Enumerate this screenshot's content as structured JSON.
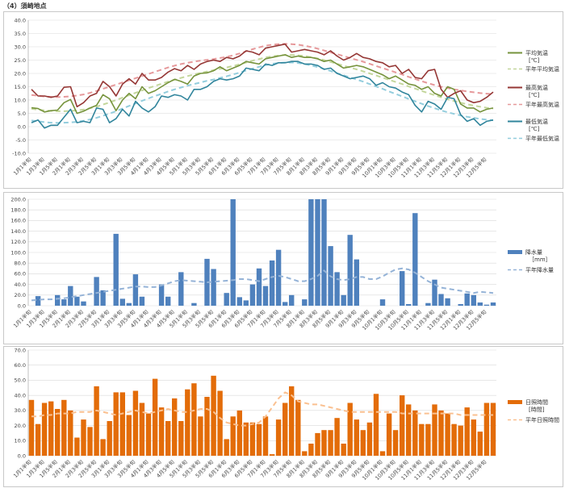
{
  "page_title": "（4）須崎地点",
  "x_labels": [
    "1月1半旬",
    "1月3半旬",
    "1月5半旬",
    "2月1半旬",
    "2月3半旬",
    "2月5半旬",
    "3月1半旬",
    "3月3半旬",
    "3月5半旬",
    "4月1半旬",
    "4月3半旬",
    "4月5半旬",
    "5月1半旬",
    "5月3半旬",
    "5月5半旬",
    "6月1半旬",
    "6月3半旬",
    "6月5半旬",
    "7月1半旬",
    "7月3半旬",
    "7月5半旬",
    "8月1半旬",
    "8月3半旬",
    "8月5半旬",
    "9月1半旬",
    "9月3半旬",
    "9月5半旬",
    "10月1半旬",
    "10月3半旬",
    "10月5半旬",
    "11月1半旬",
    "11月3半旬",
    "11月5半旬",
    "12月1半旬",
    "12月3半旬",
    "12月5半旬"
  ],
  "chart_data": [
    {
      "type": "line",
      "ylim": [
        -10,
        40
      ],
      "yticks": [
        "-10.0",
        "-5.0",
        "0.0",
        "5.0",
        "10.0",
        "15.0",
        "20.0",
        "25.0",
        "30.0",
        "35.0",
        "40.0"
      ],
      "series": [
        {
          "name": "平均気温",
          "unit": "[℃]",
          "color": "#76933c",
          "dashed": false,
          "values": [
            7.1,
            6.8,
            5.5,
            6.0,
            6.2,
            9.0,
            10.2,
            5.0,
            5.8,
            7.0,
            8.0,
            12.0,
            10.5,
            6.0,
            10.0,
            12.5,
            10.5,
            15.0,
            12.5,
            13.5,
            15.0,
            16.5,
            17.8,
            17.0,
            16.0,
            19.0,
            20.0,
            20.2,
            21.0,
            22.5,
            21.0,
            22.0,
            23.0,
            24.5,
            24.0,
            23.5,
            25.5,
            26.0,
            26.5,
            27.0,
            26.0,
            26.5,
            26.0,
            26.0,
            25.5,
            24.5,
            25.0,
            23.5,
            22.0,
            22.5,
            23.0,
            22.5,
            21.5,
            20.5,
            19.5,
            18.0,
            19.0,
            17.5,
            16.0,
            15.5,
            14.0,
            15.0,
            12.5,
            11.5,
            15.0,
            14.0,
            8.5,
            7.0,
            7.0,
            5.5,
            6.5,
            7.0
          ]
        },
        {
          "name": "平年平均気温",
          "unit": "",
          "color": "#c3d69b",
          "dashed": true,
          "values": [
            6.7,
            6.4,
            6.1,
            5.9,
            5.8,
            5.8,
            5.9,
            6.1,
            6.4,
            6.9,
            7.5,
            8.3,
            9.1,
            10.0,
            10.9,
            11.8,
            12.7,
            13.6,
            14.5,
            15.3,
            16.1,
            16.9,
            17.6,
            18.3,
            19.0,
            19.6,
            20.2,
            20.7,
            21.2,
            21.7,
            22.2,
            22.8,
            23.4,
            24.1,
            24.8,
            25.4,
            26.0,
            26.4,
            26.7,
            26.9,
            26.9,
            26.8,
            26.5,
            26.1,
            25.6,
            25.0,
            24.3,
            23.6,
            22.9,
            22.2,
            21.5,
            20.8,
            20.0,
            19.2,
            18.4,
            17.6,
            16.8,
            16.0,
            15.1,
            14.3,
            13.4,
            12.6,
            11.8,
            11.0,
            10.3,
            9.6,
            9.0,
            8.4,
            7.9,
            7.5,
            7.1,
            6.8
          ]
        },
        {
          "name": "最高気温",
          "unit": "[℃]",
          "color": "#953735",
          "dashed": false,
          "values": [
            14.0,
            11.5,
            11.5,
            11.0,
            11.5,
            14.8,
            15.0,
            7.5,
            9.0,
            11.5,
            12.5,
            17.0,
            15.0,
            11.5,
            16.0,
            18.0,
            16.0,
            20.0,
            17.5,
            17.5,
            18.5,
            20.5,
            21.8,
            21.0,
            23.0,
            21.5,
            23.5,
            24.5,
            25.0,
            24.5,
            26.0,
            25.5,
            26.5,
            28.5,
            28.0,
            27.0,
            29.5,
            30.0,
            30.5,
            31.0,
            28.0,
            28.5,
            29.0,
            28.5,
            28.0,
            27.0,
            28.5,
            26.5,
            25.0,
            26.0,
            27.5,
            26.0,
            25.5,
            24.5,
            24.0,
            22.5,
            23.0,
            20.0,
            21.5,
            18.5,
            18.0,
            21.0,
            21.5,
            14.0,
            11.0,
            12.5,
            13.5,
            10.0,
            9.0,
            9.5,
            11.0,
            13.0
          ]
        },
        {
          "name": "平年最高気温",
          "unit": "",
          "color": "#e6999b",
          "dashed": true,
          "values": [
            11.9,
            11.6,
            11.3,
            11.2,
            11.1,
            11.2,
            11.4,
            11.7,
            12.1,
            12.7,
            13.4,
            14.2,
            15.0,
            15.8,
            16.6,
            17.4,
            18.2,
            19.0,
            19.8,
            20.6,
            21.4,
            22.2,
            22.9,
            23.5,
            24.0,
            24.4,
            24.8,
            25.1,
            25.4,
            25.8,
            26.2,
            26.8,
            27.5,
            28.3,
            29.1,
            29.8,
            30.4,
            30.8,
            31.0,
            31.1,
            31.0,
            30.8,
            30.4,
            29.9,
            29.3,
            28.6,
            27.9,
            27.2,
            26.5,
            25.8,
            25.1,
            24.4,
            23.6,
            22.8,
            22.0,
            21.2,
            20.4,
            19.6,
            18.7,
            17.9,
            17.1,
            16.3,
            15.6,
            15.0,
            14.5,
            14.0,
            13.6,
            13.2,
            12.9,
            12.6,
            12.4,
            12.2
          ]
        },
        {
          "name": "最低気温",
          "unit": "[℃]",
          "color": "#31859c",
          "dashed": false,
          "values": [
            1.5,
            2.5,
            -0.5,
            0.5,
            0.5,
            3.5,
            6.5,
            1.5,
            2.0,
            1.5,
            7.0,
            6.5,
            1.5,
            3.0,
            6.5,
            4.0,
            9.5,
            7.0,
            5.5,
            7.5,
            11.5,
            11.0,
            12.0,
            11.5,
            10.0,
            14.0,
            14.0,
            15.0,
            17.0,
            18.0,
            17.5,
            18.0,
            19.0,
            22.0,
            21.5,
            21.0,
            23.5,
            23.0,
            24.0,
            24.0,
            24.5,
            24.5,
            23.5,
            23.5,
            23.0,
            21.5,
            22.0,
            20.0,
            19.0,
            18.0,
            18.5,
            19.0,
            18.0,
            15.5,
            16.5,
            15.0,
            14.5,
            13.0,
            12.0,
            8.0,
            5.5,
            9.5,
            8.5,
            6.5,
            11.0,
            10.5,
            4.5,
            2.0,
            3.0,
            0.5,
            2.0,
            2.5
          ]
        },
        {
          "name": "平年最低気温",
          "unit": "",
          "color": "#93cddd",
          "dashed": true,
          "values": [
            2.3,
            2.0,
            1.7,
            1.5,
            1.4,
            1.5,
            1.6,
            1.8,
            2.2,
            2.7,
            3.3,
            4.1,
            4.9,
            5.8,
            6.8,
            7.8,
            8.7,
            9.7,
            10.6,
            11.5,
            12.3,
            13.2,
            14.0,
            14.7,
            15.4,
            16.0,
            16.6,
            17.2,
            17.7,
            18.3,
            18.9,
            19.6,
            20.3,
            21.1,
            21.8,
            22.5,
            23.1,
            23.6,
            23.9,
            24.1,
            24.1,
            23.9,
            23.5,
            23.0,
            22.4,
            21.7,
            20.9,
            20.1,
            19.3,
            18.5,
            17.7,
            16.9,
            16.0,
            15.1,
            14.2,
            13.2,
            12.3,
            11.4,
            10.4,
            9.5,
            8.6,
            7.7,
            6.9,
            6.1,
            5.4,
            4.8,
            4.2,
            3.7,
            3.3,
            2.9,
            2.6,
            2.4
          ]
        }
      ]
    },
    {
      "type": "bar",
      "ylim": [
        0,
        200
      ],
      "yticks": [
        "0.0",
        "20.0",
        "40.0",
        "60.0",
        "80.0",
        "100.0",
        "120.0",
        "140.0",
        "160.0",
        "180.0",
        "200.0"
      ],
      "bar_series": {
        "name": "降水量",
        "unit": "［mm］",
        "color": "#4f81bd",
        "values": [
          0,
          18,
          0,
          0,
          20,
          12,
          37,
          17,
          8,
          0,
          54,
          29,
          0,
          135,
          13,
          5,
          59,
          17,
          0,
          0,
          40,
          17,
          0,
          63,
          0,
          5,
          0,
          88,
          69,
          0,
          24,
          200,
          16,
          10,
          40,
          70,
          37,
          85,
          105,
          7,
          20,
          0,
          12,
          200,
          200,
          200,
          112,
          63,
          20,
          133,
          87,
          0,
          0,
          0,
          12,
          0,
          0,
          65,
          3,
          174,
          0,
          5,
          49,
          22,
          14,
          0,
          3,
          23,
          20,
          6,
          2,
          6
        ]
      },
      "line_series": {
        "name": "平年降水量",
        "unit": "",
        "color": "#95b3d7",
        "dashed": true,
        "values": [
          10,
          11,
          12,
          12,
          13,
          14,
          16,
          18,
          20,
          22,
          24,
          26,
          28,
          30,
          32,
          34,
          36,
          36,
          35,
          35,
          38,
          42,
          46,
          48,
          47,
          46,
          45,
          44,
          45,
          46,
          47,
          48,
          50,
          50,
          48,
          46,
          50,
          54,
          56,
          54,
          50,
          46,
          46,
          50,
          56,
          66,
          55,
          50,
          48,
          50,
          54,
          54,
          50,
          50,
          55,
          62,
          68,
          70,
          68,
          62,
          54,
          46,
          40,
          34,
          32,
          30,
          28,
          26,
          24,
          26,
          25,
          24
        ]
      }
    },
    {
      "type": "bar",
      "ylim": [
        0,
        70
      ],
      "yticks": [
        "0.0",
        "10.0",
        "20.0",
        "30.0",
        "40.0",
        "50.0",
        "60.0",
        "70.0"
      ],
      "bar_series": {
        "name": "日照時間",
        "unit": "[時間]",
        "color": "#e36c09",
        "values": [
          37,
          21,
          35,
          36,
          31,
          37,
          30,
          12,
          24,
          19,
          46,
          11,
          23,
          42,
          42,
          27,
          43,
          35,
          28,
          51,
          32,
          23,
          38,
          23,
          44,
          48,
          26,
          39,
          53,
          43,
          11,
          26,
          30,
          22,
          22,
          21,
          26,
          1,
          24,
          35,
          46,
          37,
          3,
          8,
          15,
          17,
          17,
          25,
          8,
          35,
          24,
          17,
          22,
          41,
          3,
          28,
          17,
          40,
          34,
          30,
          21,
          21,
          34,
          30,
          28,
          21,
          20,
          32,
          24,
          16,
          35,
          35
        ]
      },
      "line_series": {
        "name": "平年日照時間",
        "unit": "",
        "color": "#fac090",
        "dashed": true,
        "values": [
          26,
          26,
          27,
          27,
          28,
          28,
          28,
          29,
          29,
          29,
          30,
          29,
          28,
          27,
          28,
          29,
          30,
          29,
          28,
          29,
          30,
          31,
          30,
          29,
          29,
          30,
          31,
          31,
          29,
          25,
          22,
          21,
          20,
          20,
          21,
          22,
          26,
          32,
          38,
          42,
          40,
          36,
          35,
          34,
          34,
          33,
          32,
          31,
          30,
          29,
          29,
          29,
          29,
          29,
          29,
          29,
          29,
          28,
          28,
          28,
          28,
          28,
          28,
          28,
          28,
          28,
          27,
          27,
          27,
          27,
          27,
          27
        ]
      }
    }
  ]
}
